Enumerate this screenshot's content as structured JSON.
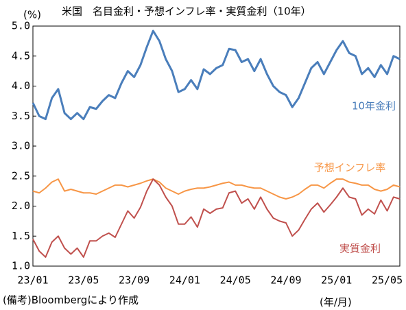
{
  "chart_data": {
    "type": "line",
    "title": "米国　名目金利・予想インフレ率・実質金利（10年）",
    "y_label": "(%)",
    "x_label": "(年/月)",
    "source": "(備考)Bloombergにより作成",
    "categories": [
      "23/01",
      null,
      null,
      null,
      null,
      null,
      null,
      null,
      "23/05",
      null,
      null,
      null,
      null,
      null,
      null,
      null,
      "23/09",
      null,
      null,
      null,
      null,
      null,
      null,
      null,
      "24/01",
      null,
      null,
      null,
      null,
      null,
      null,
      null,
      "24/05",
      null,
      null,
      null,
      null,
      null,
      null,
      null,
      "24/09",
      null,
      null,
      null,
      null,
      null,
      null,
      null,
      "25/01",
      null,
      null,
      null,
      null,
      null,
      null,
      null,
      "25/05",
      null,
      null
    ],
    "series": [
      {
        "name": "10年金利",
        "color": "#4a7ebb",
        "values": [
          3.72,
          3.5,
          3.45,
          3.8,
          3.95,
          3.55,
          3.45,
          3.55,
          3.45,
          3.65,
          3.62,
          3.75,
          3.85,
          3.8,
          4.05,
          4.25,
          4.15,
          4.35,
          4.65,
          4.92,
          4.75,
          4.45,
          4.25,
          3.9,
          3.95,
          4.1,
          3.95,
          4.28,
          4.2,
          4.3,
          4.35,
          4.62,
          4.6,
          4.4,
          4.45,
          4.25,
          4.45,
          4.2,
          4.0,
          3.9,
          3.85,
          3.65,
          3.8,
          4.05,
          4.3,
          4.4,
          4.2,
          4.4,
          4.6,
          4.75,
          4.55,
          4.5,
          4.2,
          4.3,
          4.15,
          4.35,
          4.2,
          4.5,
          4.45
        ]
      },
      {
        "name": "予想インフレ率",
        "color": "#f79646",
        "values": [
          2.25,
          2.22,
          2.3,
          2.4,
          2.45,
          2.25,
          2.28,
          2.25,
          2.22,
          2.22,
          2.2,
          2.25,
          2.3,
          2.35,
          2.35,
          2.32,
          2.35,
          2.38,
          2.42,
          2.45,
          2.4,
          2.3,
          2.25,
          2.2,
          2.25,
          2.28,
          2.3,
          2.3,
          2.32,
          2.35,
          2.38,
          2.4,
          2.35,
          2.35,
          2.32,
          2.3,
          2.3,
          2.25,
          2.2,
          2.15,
          2.12,
          2.15,
          2.2,
          2.28,
          2.35,
          2.35,
          2.3,
          2.38,
          2.45,
          2.45,
          2.4,
          2.38,
          2.35,
          2.35,
          2.28,
          2.25,
          2.28,
          2.35,
          2.32
        ]
      },
      {
        "name": "実質金利",
        "color": "#c0504d",
        "values": [
          1.45,
          1.25,
          1.15,
          1.4,
          1.5,
          1.3,
          1.2,
          1.3,
          1.15,
          1.42,
          1.42,
          1.5,
          1.55,
          1.48,
          1.7,
          1.92,
          1.8,
          1.98,
          2.25,
          2.45,
          2.35,
          2.15,
          2.0,
          1.7,
          1.7,
          1.82,
          1.65,
          1.95,
          1.88,
          1.95,
          1.97,
          2.22,
          2.25,
          2.05,
          2.12,
          1.95,
          2.15,
          1.95,
          1.8,
          1.75,
          1.72,
          1.5,
          1.6,
          1.78,
          1.95,
          2.05,
          1.9,
          2.02,
          2.15,
          2.3,
          2.15,
          2.12,
          1.85,
          1.95,
          1.87,
          2.1,
          1.92,
          2.15,
          2.12
        ]
      }
    ],
    "ylim": [
      1.0,
      5.0
    ],
    "yticks": [
      {
        "value": 1.0,
        "label": "1.0"
      },
      1.5,
      {
        "value": 2.0,
        "label": "2.0"
      },
      2.5,
      {
        "value": 3.0,
        "label": "3.0"
      },
      3.5,
      {
        "value": 4.0,
        "label": "4.0"
      },
      4.5,
      {
        "value": 5.0,
        "label": "5.0"
      }
    ],
    "grid": false
  }
}
